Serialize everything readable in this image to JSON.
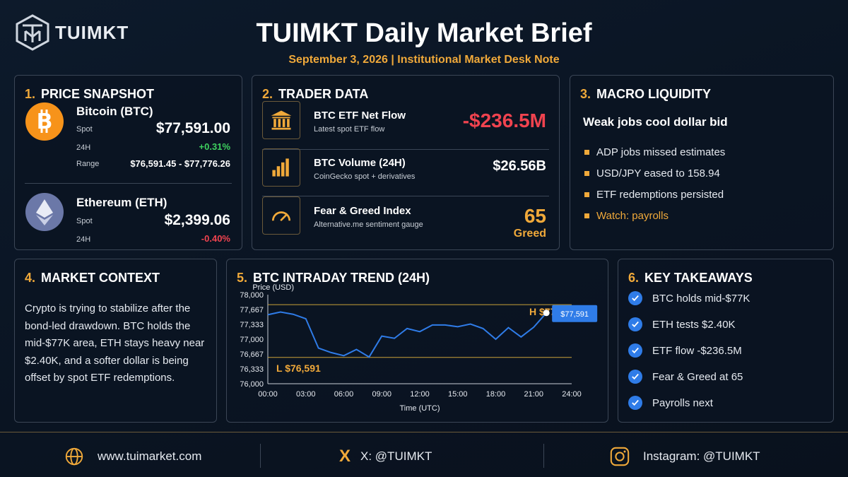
{
  "header": {
    "logo_text": "TUIMKT",
    "title": "TUIMKT Daily Market Brief",
    "subtitle": "September 3, 2026  |  Institutional Market Desk Note"
  },
  "colors": {
    "accent": "#f0a93a",
    "positive": "#3ed15f",
    "negative": "#f0434f",
    "chart_line": "#2f7ce8",
    "btc": "#f7931a",
    "eth": "#6b78a8"
  },
  "price_snapshot": {
    "num": "1.",
    "title": "PRICE SNAPSHOT",
    "btc": {
      "icon": "bitcoin-icon",
      "name": "Bitcoin (BTC)",
      "spot_label": "Spot",
      "spot": "$77,591.00",
      "change_label": "24H",
      "change": "+0.31%",
      "range_label": "Range",
      "range": "$76,591.45 - $77,776.26"
    },
    "eth": {
      "icon": "ethereum-icon",
      "name": "Ethereum (ETH)",
      "spot_label": "Spot",
      "spot": "$2,399.06",
      "change_label": "24H",
      "change": "-0.40%"
    }
  },
  "trader_data": {
    "num": "2.",
    "title": "TRADER DATA",
    "rows": [
      {
        "icon": "bank-icon",
        "title": "BTC ETF Net Flow",
        "sub": "Latest spot ETF flow",
        "value": "-$236.5M"
      },
      {
        "icon": "bar-chart-icon",
        "title": "BTC Volume (24H)",
        "sub": "CoinGecko spot + derivatives",
        "value": "$26.56B"
      },
      {
        "icon": "gauge-icon",
        "title": "Fear & Greed Index",
        "sub": "Alternative.me sentiment gauge",
        "value": "65",
        "value_label": "Greed"
      }
    ]
  },
  "macro": {
    "num": "3.",
    "title": "MACRO LIQUIDITY",
    "headline": "Weak jobs cool dollar bid",
    "bullets": [
      "ADP jobs missed estimates",
      "USD/JPY eased to 158.94",
      "ETF redemptions persisted",
      "Watch: payrolls"
    ]
  },
  "context": {
    "num": "4.",
    "title": "MARKET CONTEXT",
    "text": "Crypto is trying to stabilize after the bond-led drawdown. BTC holds the mid-$77K area, ETH stays heavy near $2.40K, and a softer dollar is being offset by spot ETF redemptions."
  },
  "trend": {
    "num": "5.",
    "title": "BTC INTRADAY TREND (24H)"
  },
  "chart_data": {
    "type": "line",
    "title": "BTC INTRADAY TREND (24H)",
    "xlabel": "Time (UTC)",
    "ylabel": "Price (USD)",
    "x_ticks": [
      "00:00",
      "03:00",
      "06:00",
      "09:00",
      "12:00",
      "15:00",
      "18:00",
      "21:00",
      "24:00"
    ],
    "y_ticks": [
      "78,000",
      "77,667",
      "77,333",
      "77,000",
      "76,667",
      "76,333",
      "76,000"
    ],
    "xlim": [
      0,
      24
    ],
    "ylim": [
      76000,
      78000
    ],
    "x": [
      0,
      1,
      2,
      3,
      4,
      5,
      6,
      7,
      8,
      9,
      10,
      11,
      12,
      13,
      14,
      15,
      16,
      17,
      18,
      19,
      20,
      21,
      22
    ],
    "y": [
      77550,
      77610,
      77560,
      77460,
      76800,
      76700,
      76630,
      76770,
      76600,
      77070,
      77020,
      77240,
      77170,
      77320,
      77320,
      77280,
      77340,
      77240,
      77000,
      77260,
      77050,
      77270,
      77591
    ],
    "high_line": 77776,
    "low_line": 76591,
    "high_label": "H $77,776",
    "low_label": "L $76,591",
    "last_label": "$77,591",
    "grid": false
  },
  "takeaways": {
    "num": "6.",
    "title": "KEY TAKEAWAYS",
    "items": [
      "BTC holds mid-$77K",
      "ETH tests $2.40K",
      "ETF flow -$236.5M",
      "Fear & Greed at 65",
      "Payrolls next"
    ]
  },
  "footer": {
    "website": "www.tuimarket.com",
    "x": "X: @TUIMKT",
    "x_glyph": "X",
    "instagram": "Instagram: @TUIMKT"
  }
}
